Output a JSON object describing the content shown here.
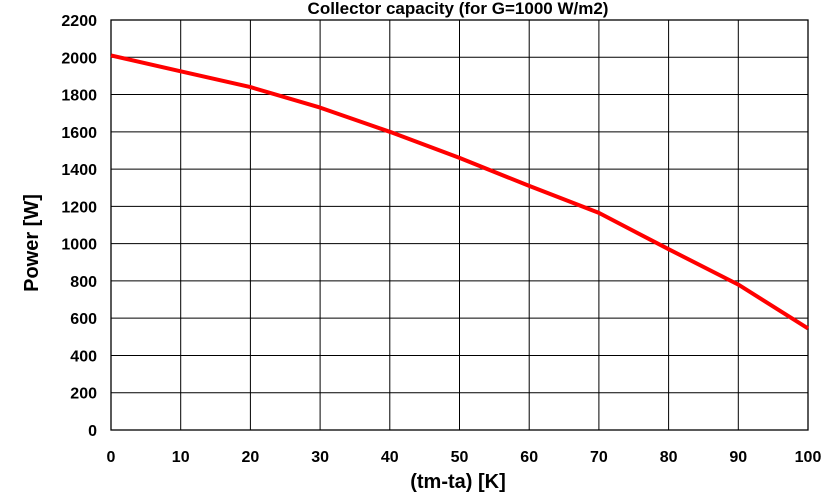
{
  "chart_data": {
    "type": "line",
    "title": "Collector capacity (for G=1000 W/m2)",
    "xlabel": "(tm-ta) [K]",
    "ylabel": "Power [W]",
    "xlim": [
      0,
      100
    ],
    "ylim": [
      0,
      2200
    ],
    "xticks": [
      0,
      10,
      20,
      30,
      40,
      50,
      60,
      70,
      80,
      90,
      100
    ],
    "yticks": [
      0,
      200,
      400,
      600,
      800,
      1000,
      1200,
      1400,
      1600,
      1800,
      2000,
      2200
    ],
    "grid": true,
    "legend": "none",
    "series": [
      {
        "color": "#ff0000",
        "x": [
          0,
          10,
          20,
          30,
          40,
          50,
          60,
          70,
          80,
          90,
          100
        ],
        "y": [
          2010,
          1925,
          1840,
          1730,
          1600,
          1460,
          1310,
          1165,
          970,
          780,
          545
        ]
      }
    ]
  }
}
